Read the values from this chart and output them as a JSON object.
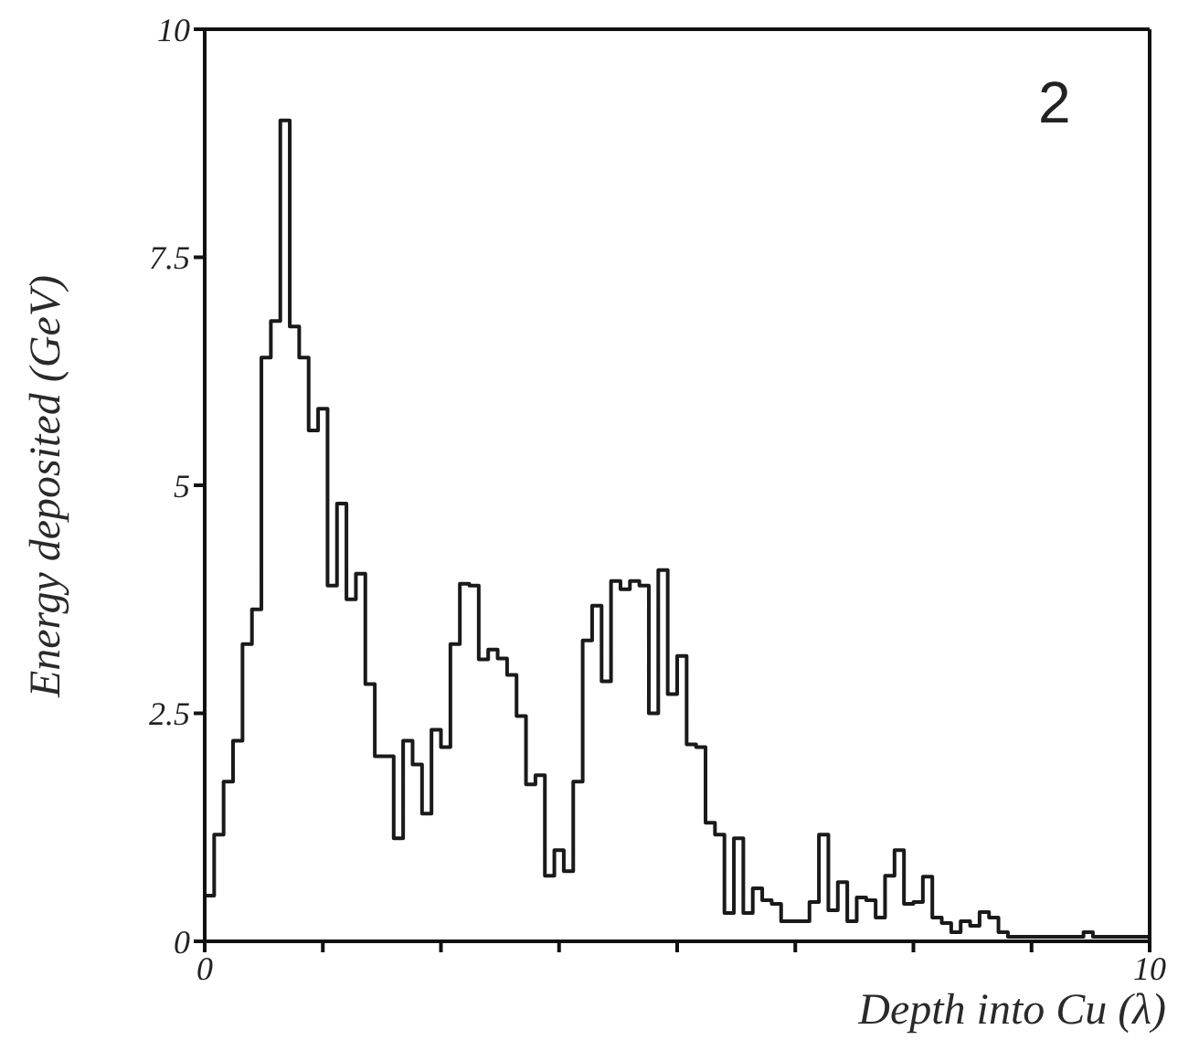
{
  "chart_data": {
    "type": "histogram",
    "xlabel": "Depth into Cu (λ)",
    "ylabel": "Energy deposited (GeV)",
    "annotations": [
      "2"
    ],
    "color": "#1a1a1a",
    "bins": [
      0,
      0.1,
      0.2,
      0.3,
      0.4,
      0.5,
      0.6,
      0.7,
      0.8,
      0.9,
      1,
      1.1,
      1.2,
      1.3,
      1.4,
      1.5,
      1.6,
      1.7,
      1.8,
      1.9,
      2,
      2.1,
      2.2,
      2.3,
      2.4,
      2.5,
      2.6,
      2.7,
      2.8,
      2.9,
      3,
      3.1,
      3.2,
      3.3,
      3.4,
      3.5,
      3.6,
      3.7,
      3.8,
      3.9,
      4,
      4.1,
      4.2,
      4.3,
      4.4,
      4.5,
      4.6,
      4.7,
      4.8,
      4.9,
      5,
      5.1,
      5.2,
      5.3,
      5.4,
      5.5,
      5.6,
      5.7,
      5.8,
      5.9,
      6,
      6.1,
      6.2,
      6.3,
      6.4,
      6.5,
      6.6,
      6.7,
      6.8,
      6.9,
      7,
      7.1,
      7.2,
      7.3,
      7.4,
      7.5,
      7.6,
      7.7,
      7.8,
      7.9,
      8,
      8.1,
      8.2,
      8.3,
      8.4,
      8.5,
      8.6,
      8.7,
      8.8,
      8.9,
      9,
      9.1,
      9.2,
      9.3,
      9.4,
      9.5,
      9.6,
      9.7,
      9.8,
      9.9,
      10
    ],
    "values": [
      0.5,
      1.17,
      1.75,
      2.2,
      3.26,
      3.64,
      6.4,
      6.8,
      9.0,
      6.74,
      6.4,
      5.6,
      5.84,
      3.9,
      4.8,
      3.75,
      4.03,
      2.82,
      2.03,
      2.03,
      1.13,
      2.2,
      1.94,
      1.4,
      2.32,
      2.13,
      3.26,
      3.92,
      3.9,
      3.09,
      3.2,
      3.1,
      2.92,
      2.47,
      1.72,
      1.82,
      0.72,
      1.0,
      0.77,
      1.75,
      3.3,
      3.68,
      2.85,
      3.95,
      3.86,
      3.95,
      3.9,
      2.5,
      4.07,
      2.71,
      3.13,
      2.16,
      2.13,
      1.3,
      1.17,
      0.31,
      1.13,
      0.31,
      0.58,
      0.45,
      0.41,
      0.22,
      0.22,
      0.22,
      0.43,
      1.17,
      0.34,
      0.65,
      0.22,
      0.48,
      0.45,
      0.26,
      0.72,
      1.0,
      0.41,
      0.43,
      0.71,
      0.26,
      0.2,
      0.1,
      0.22,
      0.17,
      0.32,
      0.26,
      0.1,
      0.05,
      0.05,
      0.05,
      0.05,
      0.05,
      0.05,
      0.05,
      0.05,
      0.1,
      0.05,
      0.05,
      0.05,
      0.05,
      0.05,
      0.05
    ],
    "xlim": [
      0,
      10
    ],
    "ylim": [
      0,
      10
    ],
    "xticks": [
      0,
      {
        "value": 1.25,
        "label": null
      },
      {
        "value": 2.5,
        "label": null
      },
      {
        "value": 3.75,
        "label": null
      },
      {
        "value": 5,
        "label": null
      },
      {
        "value": 6.25,
        "label": null
      },
      {
        "value": 7.5,
        "label": null
      },
      {
        "value": 8.75,
        "label": null
      },
      10
    ],
    "yticks": [
      0,
      2.5,
      5,
      7.5,
      10
    ]
  }
}
